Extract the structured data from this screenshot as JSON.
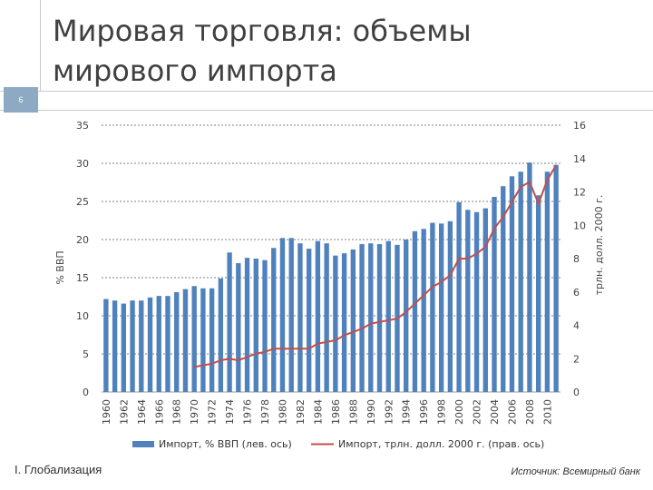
{
  "slide": {
    "title_line1": "Мировая торговля: объемы",
    "title_line2": "мирового импорта",
    "number": "6",
    "section": "I. Глобализация",
    "source": "Источник: Всемирный банк"
  },
  "chart_data": {
    "type": "bar",
    "x": [
      1960,
      1961,
      1962,
      1963,
      1964,
      1965,
      1966,
      1967,
      1968,
      1969,
      1970,
      1971,
      1972,
      1973,
      1974,
      1975,
      1976,
      1977,
      1978,
      1979,
      1980,
      1981,
      1982,
      1983,
      1984,
      1985,
      1986,
      1987,
      1988,
      1989,
      1990,
      1991,
      1992,
      1993,
      1994,
      1995,
      1996,
      1997,
      1998,
      1999,
      2000,
      2001,
      2002,
      2003,
      2004,
      2005,
      2006,
      2007,
      2008,
      2009,
      2010,
      2011
    ],
    "x_tick_labels": [
      "1960",
      "1962",
      "1964",
      "1966",
      "1968",
      "1970",
      "1972",
      "1974",
      "1976",
      "1978",
      "1980",
      "1982",
      "1984",
      "1986",
      "1988",
      "1990",
      "1992",
      "1994",
      "1996",
      "1998",
      "2000",
      "2002",
      "2004",
      "2006",
      "2008",
      "2010"
    ],
    "series": [
      {
        "name": "Импорт, % ВВП (лев. ось)",
        "type": "bar",
        "axis": "left",
        "color": "#4f81bd",
        "values": [
          12.2,
          12.0,
          11.6,
          12.0,
          12.0,
          12.4,
          12.6,
          12.6,
          13.1,
          13.5,
          13.9,
          13.6,
          13.6,
          14.9,
          18.3,
          16.9,
          17.6,
          17.5,
          17.3,
          18.9,
          20.2,
          20.2,
          19.5,
          18.8,
          19.8,
          19.5,
          17.9,
          18.2,
          18.7,
          19.4,
          19.5,
          19.4,
          19.8,
          19.3,
          20.0,
          21.1,
          21.4,
          22.2,
          22.1,
          22.4,
          24.9,
          23.9,
          23.6,
          24.1,
          25.6,
          27.0,
          28.3,
          28.9,
          30.1,
          25.8,
          28.9,
          29.8
        ]
      },
      {
        "name": "Импорт, трлн. долл. 2000 г. (прав. ось)",
        "type": "line",
        "axis": "right",
        "color": "#c0504d",
        "values": [
          null,
          null,
          null,
          null,
          null,
          null,
          null,
          null,
          null,
          null,
          1.5,
          1.6,
          1.7,
          1.9,
          2.0,
          1.9,
          2.1,
          2.3,
          2.4,
          2.6,
          2.6,
          2.6,
          2.6,
          2.6,
          2.9,
          3.0,
          3.1,
          3.4,
          3.6,
          3.8,
          4.1,
          4.2,
          4.3,
          4.4,
          4.8,
          5.3,
          5.8,
          6.3,
          6.6,
          7.0,
          8.0,
          8.0,
          8.3,
          8.7,
          9.8,
          10.5,
          11.4,
          12.3,
          12.6,
          11.3,
          12.7,
          13.6
        ]
      }
    ],
    "y_left": {
      "min": 0,
      "max": 35,
      "ticks": [
        0,
        5,
        10,
        15,
        20,
        25,
        30,
        35
      ],
      "label": "% ВВП"
    },
    "y_right": {
      "min": 0,
      "max": 16,
      "ticks": [
        0,
        2,
        4,
        6,
        8,
        10,
        12,
        14,
        16
      ],
      "label": "трлн. долл. 2000 г."
    },
    "grid": true,
    "legend_position": "bottom"
  }
}
